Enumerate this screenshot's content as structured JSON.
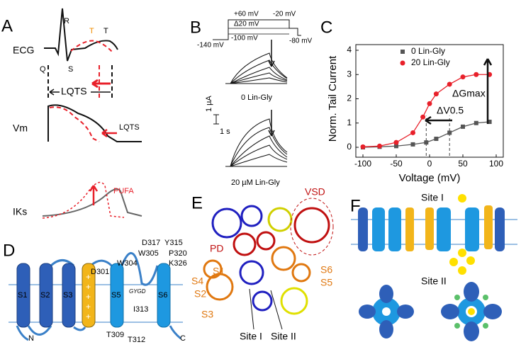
{
  "panels": {
    "a": {
      "label": "A",
      "ecg": "ECG",
      "r": "R",
      "t_orange": "T",
      "t": "T",
      "q": "Q",
      "s": "S",
      "lqts1": "LQTS",
      "vm": "Vm",
      "lqts2": "LQTS",
      "iks": "IKs",
      "pufa": "PUFA"
    },
    "b": {
      "label": "B",
      "v1": "+60 mV",
      "v2": "Δ20 mV",
      "v3": "-100 mV",
      "v4": "-20 mV",
      "v5": "-140 mV",
      "v6": "-80 mV",
      "cond1": "0 Lin-Gly",
      "scale_i": "1 µA",
      "scale_t": "1 s",
      "cond2": "20 µM Lin-Gly"
    },
    "c": {
      "label": "C"
    },
    "d": {
      "label": "D",
      "s1": "S1",
      "s2": "S2",
      "s3": "S3",
      "s5": "S5",
      "s6": "S6",
      "d317": "D317",
      "y315": "Y315",
      "w305": "W305",
      "p320": "P320",
      "w304": "W304",
      "k326": "K326",
      "d301": "D301",
      "gygd": "GYGD",
      "i313": "I313",
      "t309": "T309",
      "t312": "T312",
      "n": "N",
      "c": "C"
    },
    "e": {
      "label": "E",
      "vsd": "VSD",
      "pd": "PD",
      "s1": "S1",
      "s2": "S2",
      "s3": "S3",
      "s4": "S4",
      "s5": "S5",
      "s6": "S6",
      "site1": "Site I",
      "site2": "Site II"
    },
    "f": {
      "label": "F",
      "site1": "Site I",
      "site2": "Site II"
    }
  },
  "chart_data": {
    "type": "line",
    "xlabel": "Voltage (mV)",
    "ylabel": "Norm. Tail Current",
    "xlim": [
      -100,
      100
    ],
    "xticks": [
      -100,
      -50,
      0,
      50,
      100
    ],
    "ylim": [
      0,
      4
    ],
    "yticks": [
      0,
      1,
      2,
      3,
      4
    ],
    "legend": "upper right",
    "series": [
      {
        "name": "0 Lin-Gly",
        "color": "#555555",
        "marker": "square",
        "x": [
          -100,
          -75,
          -50,
          -25,
          -5,
          10,
          30,
          50,
          70,
          90
        ],
        "values": [
          0.0,
          0.02,
          0.05,
          0.12,
          0.2,
          0.35,
          0.6,
          0.85,
          1.0,
          1.05
        ]
      },
      {
        "name": "20 Lin-Gly",
        "color": "#e8202a",
        "marker": "circle",
        "x": [
          -100,
          -75,
          -50,
          -25,
          -10,
          0,
          10,
          30,
          50,
          70,
          90
        ],
        "values": [
          0.02,
          0.05,
          0.2,
          0.6,
          1.25,
          1.8,
          2.2,
          2.6,
          2.9,
          3.0,
          3.0
        ]
      }
    ],
    "vlines": [
      -5,
      30
    ],
    "annotations": [
      "ΔGmax",
      "ΔV0.5"
    ]
  }
}
